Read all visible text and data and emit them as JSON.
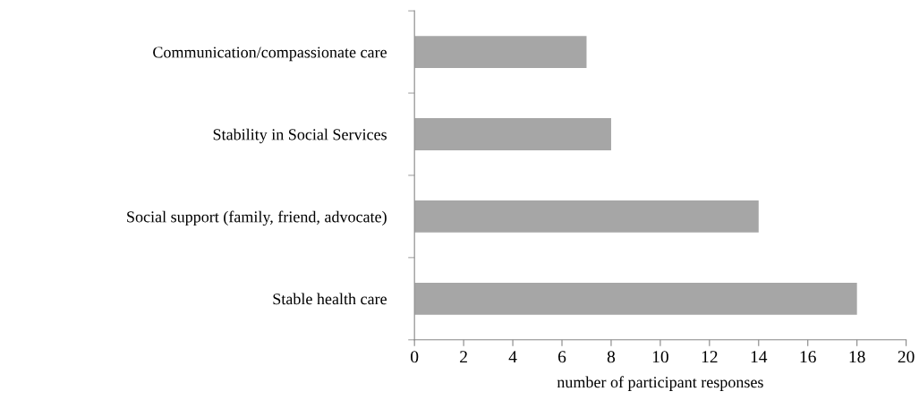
{
  "chart_data": {
    "type": "bar",
    "orientation": "horizontal",
    "xlabel": "number of participant responses",
    "categories": [
      "Communication/compassionate care",
      "Stability in Social Services",
      "Social support (family, friend, advocate)",
      "Stable health care"
    ],
    "values": [
      7,
      8,
      14,
      18
    ],
    "color": "#a6a6a6",
    "xlim": [
      0,
      20
    ],
    "xticks": [
      0,
      2,
      4,
      6,
      8,
      10,
      12,
      14,
      16,
      18,
      20
    ],
    "grid": false,
    "legend": false
  }
}
